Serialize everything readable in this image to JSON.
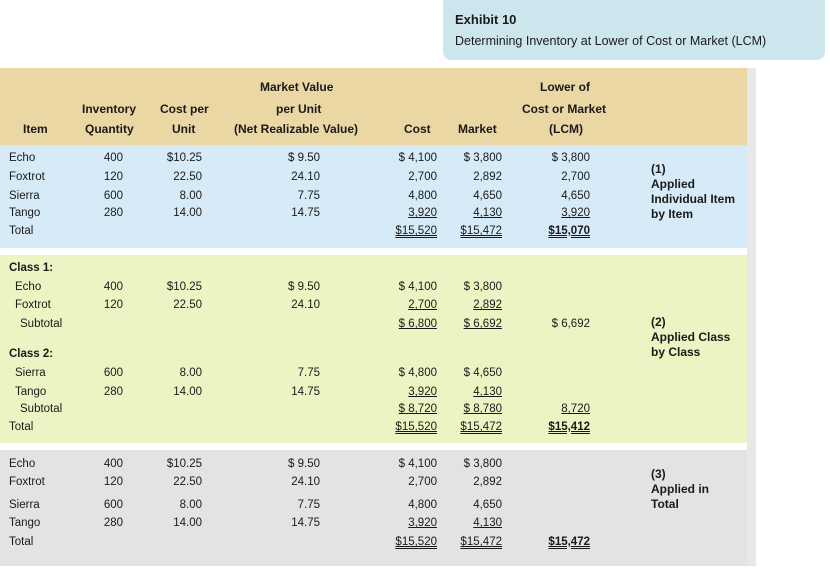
{
  "exhibit": {
    "title": "Exhibit 10",
    "subtitle": "Determining Inventory at Lower of Cost or Market (LCM)"
  },
  "header": {
    "item": "Item",
    "qty1": "Inventory",
    "qty2": "Quantity",
    "cpu1": "Cost per",
    "cpu2": "Unit",
    "mv1": "Market Value",
    "mv2": "per Unit",
    "mv3": "(Net Realizable Value)",
    "cost": "Cost",
    "market": "Market",
    "lcm1": "Lower of",
    "lcm2": "Cost or Market",
    "lcm3": "(LCM)"
  },
  "s1": {
    "rows": [
      {
        "item": "Echo",
        "qty": "400",
        "cpu": "$10.25",
        "mv": "$ 9.50",
        "cost": "$ 4,100",
        "market": "$ 3,800",
        "lcm": "$ 3,800"
      },
      {
        "item": "Foxtrot",
        "qty": "120",
        "cpu": "22.50",
        "mv": "24.10",
        "cost": "2,700",
        "market": "2,892",
        "lcm": "2,700"
      },
      {
        "item": "Sierra",
        "qty": "600",
        "cpu": "8.00",
        "mv": "7.75",
        "cost": "4,800",
        "market": "4,650",
        "lcm": "4,650"
      },
      {
        "item": "Tango",
        "qty": "280",
        "cpu": "14.00",
        "mv": "14.75",
        "cost": "3,920",
        "market": "4,130",
        "lcm": "3,920"
      }
    ],
    "total_label": "Total",
    "total_cost": "$15,520",
    "total_market": "$15,472",
    "total_lcm": "$15,070",
    "note": "(1)\nApplied\nIndividual Item\nby Item"
  },
  "s2": {
    "class1": "Class 1:",
    "r1": {
      "item": "Echo",
      "qty": "400",
      "cpu": "$10.25",
      "mv": "$ 9.50",
      "cost": "$ 4,100",
      "market": "$ 3,800"
    },
    "r2": {
      "item": "Foxtrot",
      "qty": "120",
      "cpu": "22.50",
      "mv": "24.10",
      "cost": "2,700",
      "market": "2,892"
    },
    "sub1": {
      "label": "Subtotal",
      "cost": "$ 6,800",
      "market": "$ 6,692",
      "lcm": "$ 6,692"
    },
    "class2": "Class 2:",
    "r3": {
      "item": "Sierra",
      "qty": "600",
      "cpu": "8.00",
      "mv": "7.75",
      "cost": "$ 4,800",
      "market": "$ 4,650"
    },
    "r4": {
      "item": "Tango",
      "qty": "280",
      "cpu": "14.00",
      "mv": "14.75",
      "cost": "3,920",
      "market": "4,130"
    },
    "sub2": {
      "label": "Subtotal",
      "cost": "$ 8,720",
      "market": "$ 8,780",
      "lcm": "8,720"
    },
    "total": {
      "label": "Total",
      "cost": "$15,520",
      "market": "$15,472",
      "lcm": "$15,412"
    },
    "note": "(2)\nApplied Class\nby Class"
  },
  "s3": {
    "rows": [
      {
        "item": "Echo",
        "qty": "400",
        "cpu": "$10.25",
        "mv": "$ 9.50",
        "cost": "$ 4,100",
        "market": "$ 3,800"
      },
      {
        "item": "Foxtrot",
        "qty": "120",
        "cpu": "22.50",
        "mv": "24.10",
        "cost": "2,700",
        "market": "2,892"
      },
      {
        "item": "Sierra",
        "qty": "600",
        "cpu": "8.00",
        "mv": "7.75",
        "cost": "4,800",
        "market": "4,650"
      },
      {
        "item": "Tango",
        "qty": "280",
        "cpu": "14.00",
        "mv": "14.75",
        "cost": "3,920",
        "market": "4,130"
      }
    ],
    "total_label": "Total",
    "total_cost": "$15,520",
    "total_market": "$15,472",
    "total_lcm": "$15,472",
    "note": "(3)\nApplied in\nTotal"
  }
}
